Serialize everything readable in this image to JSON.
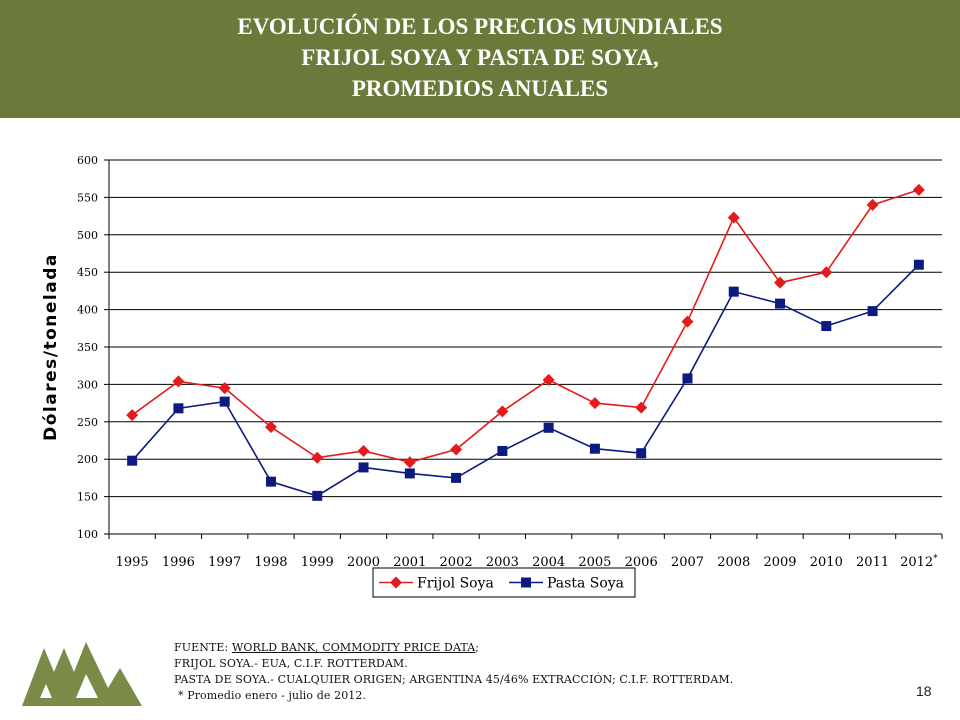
{
  "header": {
    "title_line1": "EVOLUCIÓN DE LOS PRECIOS MUNDIALES",
    "title_line2": "FRIJOL SOYA Y PASTA DE SOYA,",
    "title_line3": "PROMEDIOS ANUALES"
  },
  "colors": {
    "header_bg": "#6b7a3a",
    "frijol": "#e41b1b",
    "pasta": "#0d1a80",
    "logo": "#7a8a47"
  },
  "chart_data": {
    "type": "line",
    "title": "",
    "ylabel": "Dólares/tonelada",
    "xlabel": "",
    "ylim": [
      100,
      600
    ],
    "yticks": [
      100,
      150,
      200,
      250,
      300,
      350,
      400,
      450,
      500,
      550,
      600
    ],
    "categories": [
      "1995",
      "1996",
      "1997",
      "1998",
      "1999",
      "2000",
      "2001",
      "2002",
      "2003",
      "2004",
      "2005",
      "2006",
      "2007",
      "2008",
      "2009",
      "2010",
      "2011",
      "2012"
    ],
    "footnote_mark": "*",
    "grid": "horizontal",
    "legend_position": "bottom",
    "series": [
      {
        "name": "Frijol Soya",
        "marker": "diamond",
        "color": "#e41b1b",
        "values": [
          259,
          304,
          295,
          243,
          202,
          211,
          196,
          213,
          264,
          306,
          275,
          269,
          384,
          523,
          436,
          450,
          540,
          560
        ]
      },
      {
        "name": "Pasta Soya",
        "marker": "square",
        "color": "#0d1a80",
        "values": [
          198,
          268,
          277,
          170,
          151,
          189,
          181,
          175,
          211,
          242,
          214,
          208,
          308,
          424,
          408,
          378,
          398,
          460
        ]
      }
    ]
  },
  "source": {
    "line1_prefix": "FUENTE: ",
    "line1_link": "WORLD BANK, COMMODITY PRICE DATA",
    "line1_suffix": ";",
    "line2": "FRIJOL SOYA.- EUA, C.I.F. ROTTERDAM.",
    "line3": "PASTA DE SOYA.- CUALQUIER ORIGEN; ARGENTINA 45/46% EXTRACCIÓN; C.I.F. ROTTERDAM.",
    "line4": "* Promedio enero - julio de 2012."
  },
  "page_number": "18"
}
